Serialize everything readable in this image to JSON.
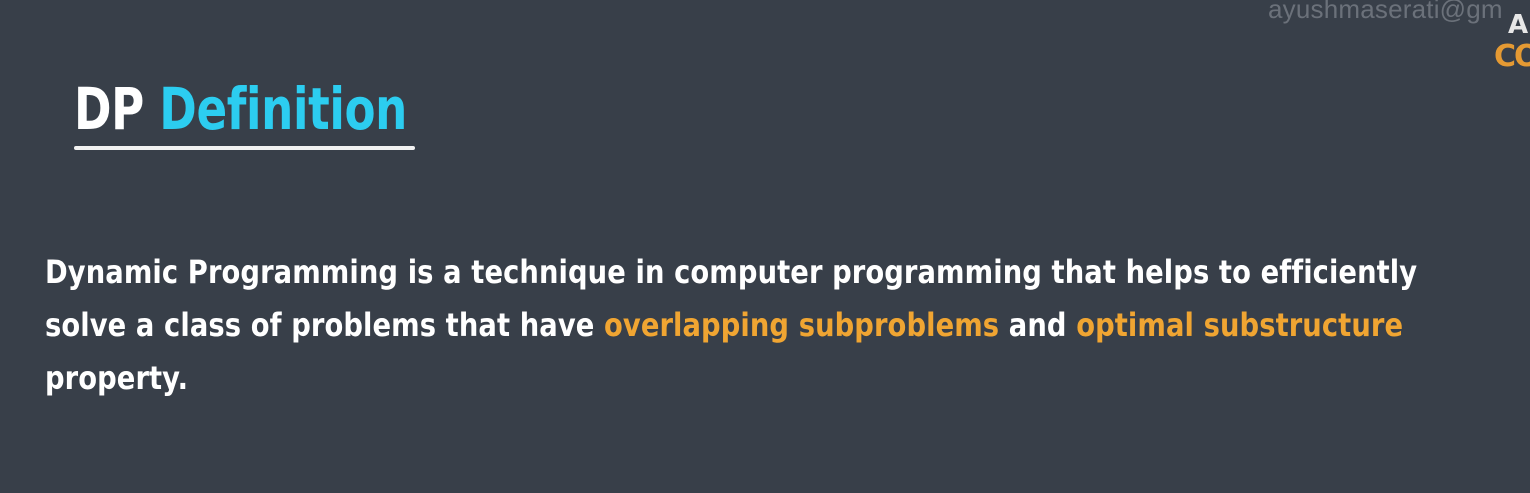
{
  "watermark": {
    "text": "ayushmaserati@gm"
  },
  "logo": {
    "top_text": "A",
    "bottom_text": "CO"
  },
  "heading": {
    "part1": "DP",
    "part2": "Definition"
  },
  "definition": {
    "line1": "Dynamic Programming is a technique in computer programming that helps to efficiently",
    "line2_prefix": "solve a class of problems that have ",
    "highlight1": "overlapping subproblems",
    "connector": " and ",
    "highlight2": "optimal substructure",
    "line3": "property."
  },
  "colors": {
    "background": "#383f49",
    "heading_accent": "#2ccdf0",
    "highlight": "#f0a532",
    "text": "#ffffff"
  }
}
